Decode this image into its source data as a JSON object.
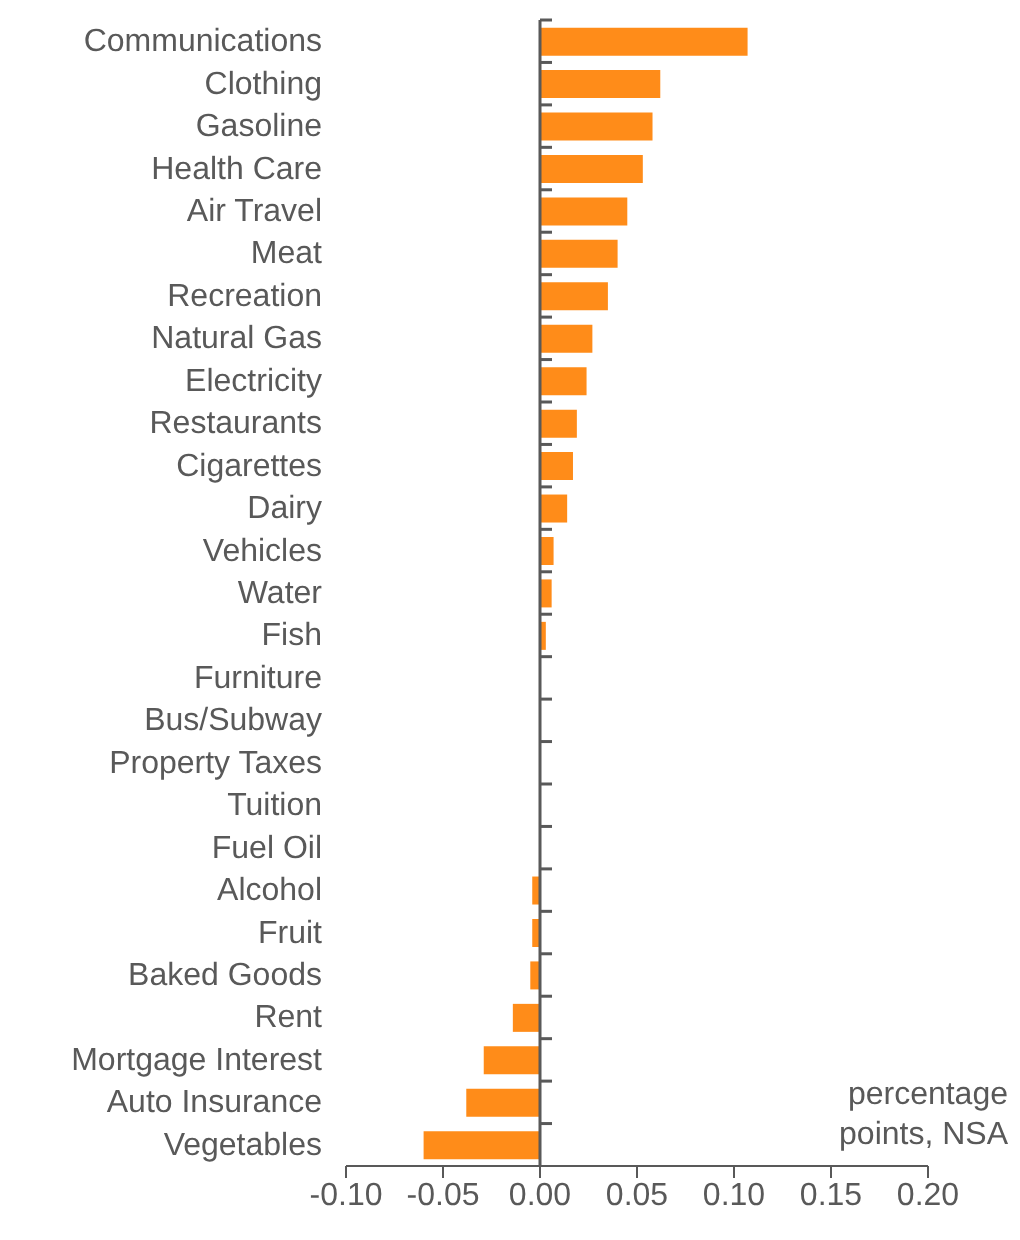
{
  "chart_data": {
    "type": "bar",
    "orientation": "horizontal",
    "categories": [
      "Communications",
      "Clothing",
      "Gasoline",
      "Health Care",
      "Air Travel",
      "Meat",
      "Recreation",
      "Natural Gas",
      "Electricity",
      "Restaurants",
      "Cigarettes",
      "Dairy",
      "Vehicles",
      "Water",
      "Fish",
      "Furniture",
      "Bus/Subway",
      "Property Taxes",
      "Tuition",
      "Fuel Oil",
      "Alcohol",
      "Fruit",
      "Baked Goods",
      "Rent",
      "Mortgage Interest",
      "Auto Insurance",
      "Vegetables"
    ],
    "values": [
      0.107,
      0.062,
      0.058,
      0.053,
      0.045,
      0.04,
      0.035,
      0.027,
      0.024,
      0.019,
      0.017,
      0.014,
      0.007,
      0.006,
      0.003,
      0,
      0,
      0,
      0,
      0,
      -0.004,
      -0.004,
      -0.005,
      -0.014,
      -0.029,
      -0.038,
      -0.06
    ],
    "color": "#ff8c19",
    "xlim": [
      -0.1,
      0.2
    ],
    "xticks": [
      {
        "value": -0.1,
        "label": "-0.10"
      },
      {
        "value": -0.05,
        "label": "-0.05"
      },
      {
        "value": 0,
        "label": "0.00"
      },
      {
        "value": 0.05,
        "label": "0.05"
      },
      {
        "value": 0.1,
        "label": "0.10"
      },
      {
        "value": 0.15,
        "label": "0.15"
      },
      {
        "value": 0.2,
        "label": "0.20"
      }
    ],
    "annotations": [
      "percentage points, NSA"
    ],
    "ref_lines": [
      {
        "axis": "x",
        "value": 0,
        "color": "#595959"
      }
    ],
    "grid": false,
    "legend": false
  }
}
